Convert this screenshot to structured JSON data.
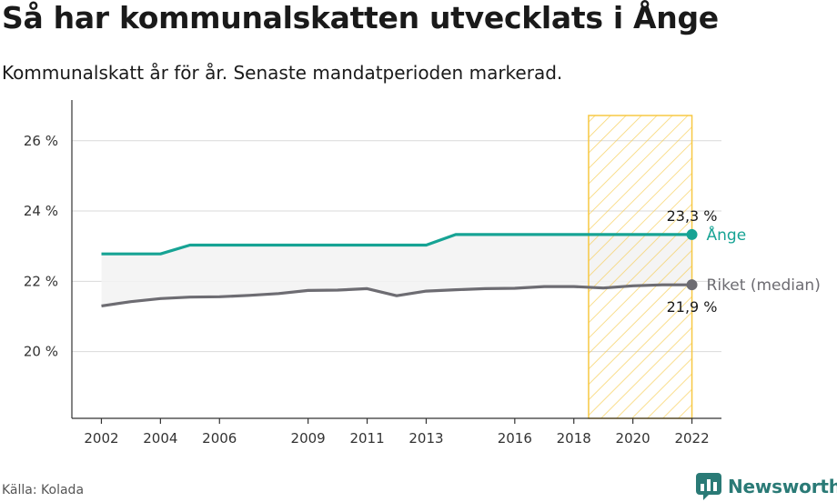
{
  "header": {
    "title": "Så har kommunalskatten utvecklats i Ånge",
    "subtitle": "Kommunalskatt år för år. Senaste mandatperioden markerad."
  },
  "footer": {
    "source": "Källa: Kolada",
    "brand": "Newsworthy"
  },
  "colors": {
    "ange": "#16a394",
    "riket": "#6d6c72",
    "highlight": "#f7c843",
    "band": "#f2f2f2",
    "grid": "#d9d9d9"
  },
  "chart_data": {
    "type": "line",
    "x": [
      2002,
      2003,
      2004,
      2005,
      2006,
      2007,
      2008,
      2009,
      2010,
      2011,
      2012,
      2013,
      2014,
      2015,
      2016,
      2017,
      2018,
      2019,
      2020,
      2021,
      2022
    ],
    "xticks": [
      2002,
      2004,
      2006,
      2009,
      2011,
      2013,
      2016,
      2018,
      2020,
      2022
    ],
    "xtick_labels": [
      "2002",
      "2004",
      "2006",
      "2009",
      "2011",
      "2013",
      "2016",
      "2018",
      "2020",
      "2022"
    ],
    "yticks": [
      20,
      22,
      24,
      26
    ],
    "ytick_labels": [
      "20 %",
      "22 %",
      "24 %",
      "26 %"
    ],
    "ylim": [
      18.1,
      26.9
    ],
    "xlim": [
      2001,
      2023
    ],
    "highlight_period": [
      2018.5,
      2022
    ],
    "series": [
      {
        "name": "Ånge",
        "key": "ange",
        "values": [
          22.78,
          22.78,
          22.78,
          23.03,
          23.03,
          23.03,
          23.03,
          23.03,
          23.03,
          23.03,
          23.03,
          23.03,
          23.33,
          23.33,
          23.33,
          23.33,
          23.33,
          23.33,
          23.33,
          23.33,
          23.33
        ],
        "end_value_label": "23,3 %"
      },
      {
        "name": "Riket (median)",
        "key": "riket",
        "values": [
          21.3,
          21.42,
          21.51,
          21.55,
          21.56,
          21.6,
          21.65,
          21.74,
          21.75,
          21.79,
          21.59,
          21.72,
          21.76,
          21.79,
          21.8,
          21.85,
          21.85,
          21.81,
          21.87,
          21.9,
          21.9
        ],
        "end_value_label": "21,9 %"
      }
    ]
  }
}
